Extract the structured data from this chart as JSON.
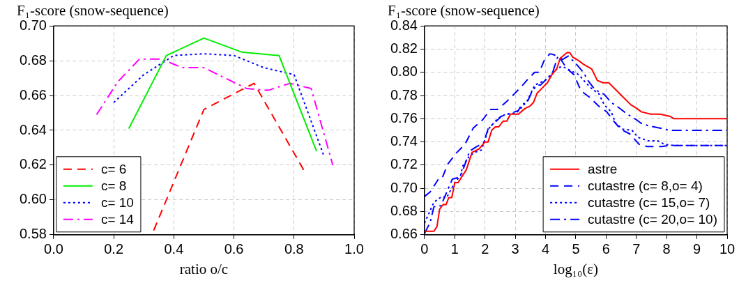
{
  "chart_data": [
    {
      "type": "line",
      "title": "F₁-score (snow-sequence)",
      "xlabel": "ratio o/c",
      "xlim": [
        0,
        1
      ],
      "ylim": [
        0.58,
        0.7
      ],
      "xticks": [
        {
          "value": 0,
          "label": "0.0"
        },
        0.2,
        0.4,
        0.6,
        0.8,
        {
          "value": 1,
          "label": "1.0"
        }
      ],
      "yticks": [
        0.58,
        {
          "value": 0.6,
          "label": "0.60"
        },
        0.62,
        0.64,
        0.66,
        0.68,
        {
          "value": 0.7,
          "label": "0.70"
        }
      ],
      "grid": true,
      "legend": "bottom left",
      "series": [
        {
          "name": "c= 6",
          "color": "#ff0000",
          "line_style": "dashed",
          "x": [
            0.333,
            0.5,
            0.667,
            0.833
          ],
          "values": [
            0.5825,
            0.652,
            0.667,
            0.617
          ]
        },
        {
          "name": "c= 8",
          "color": "#00ee00",
          "line_style": "solid",
          "x": [
            0.25,
            0.375,
            0.5,
            0.625,
            0.75,
            0.875
          ],
          "values": [
            0.641,
            0.683,
            0.693,
            0.685,
            0.683,
            0.628
          ]
        },
        {
          "name": "c= 10",
          "color": "#0000ff",
          "line_style": "dotted",
          "x": [
            0.2,
            0.3,
            0.4,
            0.5,
            0.6,
            0.7,
            0.8,
            0.9
          ],
          "values": [
            0.656,
            0.672,
            0.683,
            0.684,
            0.683,
            0.676,
            0.672,
            0.625
          ]
        },
        {
          "name": "c= 14",
          "color": "#ff00ff",
          "line_style": "dashdot",
          "x": [
            0.143,
            0.214,
            0.286,
            0.357,
            0.429,
            0.5,
            0.571,
            0.643,
            0.714,
            0.786,
            0.857,
            0.929
          ],
          "values": [
            0.649,
            0.668,
            0.681,
            0.681,
            0.676,
            0.676,
            0.67,
            0.664,
            0.663,
            0.667,
            0.664,
            0.62
          ]
        }
      ]
    },
    {
      "type": "line",
      "title": "F₁-score (snow-sequence)",
      "xlabel": "log₁₀(ε)",
      "xlim": [
        0,
        10
      ],
      "ylim": [
        0.66,
        0.84
      ],
      "xticks": [
        0,
        1,
        2,
        3,
        4,
        5,
        6,
        7,
        8,
        9,
        10
      ],
      "yticks": [
        0.66,
        0.68,
        {
          "value": 0.7,
          "label": "0.70"
        },
        0.72,
        0.74,
        0.76,
        0.78,
        {
          "value": 0.8,
          "label": "0.80"
        },
        0.82,
        0.84
      ],
      "grid": true,
      "legend": "bottom right",
      "series": [
        {
          "name": "astre",
          "color": "#ff0000",
          "line_style": "solid",
          "x": [
            0,
            0.31,
            0.41,
            0.5,
            0.61,
            0.71,
            0.8,
            0.9,
            1.0,
            1.11,
            1.38,
            1.57,
            1.8,
            2.0,
            2.1,
            2.22,
            2.34,
            2.45,
            2.6,
            2.72,
            2.84,
            3.1,
            3.33,
            3.49,
            3.6,
            3.72,
            3.87,
            4.06,
            4.21,
            4.37,
            4.48,
            4.71,
            4.8,
            4.9,
            5.1,
            5.25,
            5.52,
            5.71,
            5.9,
            6.09,
            6.32,
            6.55,
            6.82,
            7.01,
            7.16,
            7.47,
            7.78,
            8.12,
            8.24,
            10
          ],
          "values": [
            0.663,
            0.663,
            0.667,
            0.682,
            0.686,
            0.686,
            0.692,
            0.692,
            0.705,
            0.705,
            0.716,
            0.731,
            0.734,
            0.74,
            0.74,
            0.75,
            0.753,
            0.753,
            0.758,
            0.758,
            0.764,
            0.764,
            0.769,
            0.771,
            0.774,
            0.782,
            0.786,
            0.791,
            0.798,
            0.803,
            0.812,
            0.817,
            0.817,
            0.813,
            0.81,
            0.807,
            0.803,
            0.793,
            0.791,
            0.791,
            0.785,
            0.779,
            0.772,
            0.769,
            0.766,
            0.764,
            0.764,
            0.762,
            0.76,
            0.76
          ]
        },
        {
          "name": "cutastre (c= 8,o= 4)",
          "color": "#0000ff",
          "line_style": "dashed",
          "x": [
            0,
            0.19,
            0.46,
            0.57,
            0.77,
            1.07,
            1.34,
            1.61,
            1.92,
            2.18,
            2.41,
            2.72,
            2.95,
            3.18,
            3.41,
            3.64,
            3.79,
            3.95,
            4.14,
            4.29,
            4.48,
            4.71,
            4.94,
            5.17,
            5.48,
            5.75,
            6.02,
            6.25,
            6.48,
            6.78,
            7.09,
            7.36,
            7.85,
            8.08,
            10
          ],
          "values": [
            0.693,
            0.697,
            0.708,
            0.708,
            0.721,
            0.731,
            0.738,
            0.752,
            0.759,
            0.768,
            0.768,
            0.775,
            0.781,
            0.787,
            0.794,
            0.8,
            0.8,
            0.81,
            0.816,
            0.815,
            0.812,
            0.803,
            0.798,
            0.784,
            0.778,
            0.771,
            0.766,
            0.758,
            0.751,
            0.747,
            0.738,
            0.736,
            0.736,
            0.737,
            0.737
          ]
        },
        {
          "name": "cutastre (c= 15,o= 7)",
          "color": "#0000ff",
          "line_style": "dotted",
          "x": [
            0,
            0.31,
            0.57,
            0.73,
            1.0,
            1.19,
            1.26,
            1.46,
            1.65,
            1.88,
            2.11,
            2.41,
            2.68,
            3.03,
            3.22,
            3.41,
            3.64,
            3.98,
            4.18,
            4.41,
            4.56,
            4.87,
            5.1,
            5.33,
            5.56,
            5.75,
            5.94,
            6.17,
            6.32,
            6.55,
            6.86,
            7.05,
            7.39,
            7.7,
            7.93,
            8.24,
            10
          ],
          "values": [
            0.67,
            0.688,
            0.693,
            0.692,
            0.705,
            0.711,
            0.719,
            0.727,
            0.731,
            0.733,
            0.751,
            0.76,
            0.764,
            0.765,
            0.77,
            0.776,
            0.789,
            0.793,
            0.798,
            0.804,
            0.805,
            0.801,
            0.798,
            0.791,
            0.785,
            0.782,
            0.772,
            0.766,
            0.756,
            0.751,
            0.75,
            0.744,
            0.741,
            0.741,
            0.738,
            0.737,
            0.737
          ]
        },
        {
          "name": "cutastre (c= 20,o= 10)",
          "color": "#0000ff",
          "line_style": "dashdot",
          "x": [
            0,
            0.19,
            0.31,
            0.42,
            0.54,
            0.92,
            1.07,
            1.23,
            1.49,
            1.72,
            1.95,
            2.11,
            2.34,
            2.53,
            2.76,
            3.1,
            3.22,
            3.37,
            3.56,
            3.72,
            3.83,
            4.1,
            4.21,
            4.41,
            4.56,
            4.75,
            5.02,
            5.25,
            5.4,
            5.63,
            5.94,
            6.17,
            6.4,
            6.7,
            7.01,
            7.16,
            7.39,
            7.78,
            8.08,
            10
          ],
          "values": [
            0.661,
            0.671,
            0.684,
            0.685,
            0.685,
            0.708,
            0.709,
            0.713,
            0.732,
            0.736,
            0.739,
            0.752,
            0.757,
            0.762,
            0.764,
            0.767,
            0.773,
            0.773,
            0.784,
            0.789,
            0.789,
            0.796,
            0.798,
            0.814,
            0.811,
            0.814,
            0.807,
            0.8,
            0.793,
            0.785,
            0.781,
            0.774,
            0.77,
            0.764,
            0.759,
            0.756,
            0.754,
            0.752,
            0.75,
            0.75
          ]
        }
      ]
    }
  ]
}
